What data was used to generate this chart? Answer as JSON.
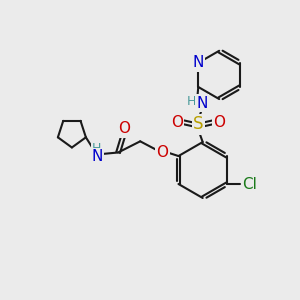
{
  "bg_color": "#ebebeb",
  "bond_color": "#1a1a1a",
  "bond_width": 1.5,
  "colors": {
    "N": "#0000cc",
    "O": "#cc0000",
    "S": "#b8a000",
    "Cl": "#1a7a1a",
    "H_N": "#4a9a9a",
    "C": "#1a1a1a"
  },
  "font_size_atom": 11,
  "font_size_small": 9,
  "figsize": [
    3.0,
    3.0
  ],
  "dpi": 100,
  "xlim": [
    0,
    10
  ],
  "ylim": [
    0,
    10
  ]
}
